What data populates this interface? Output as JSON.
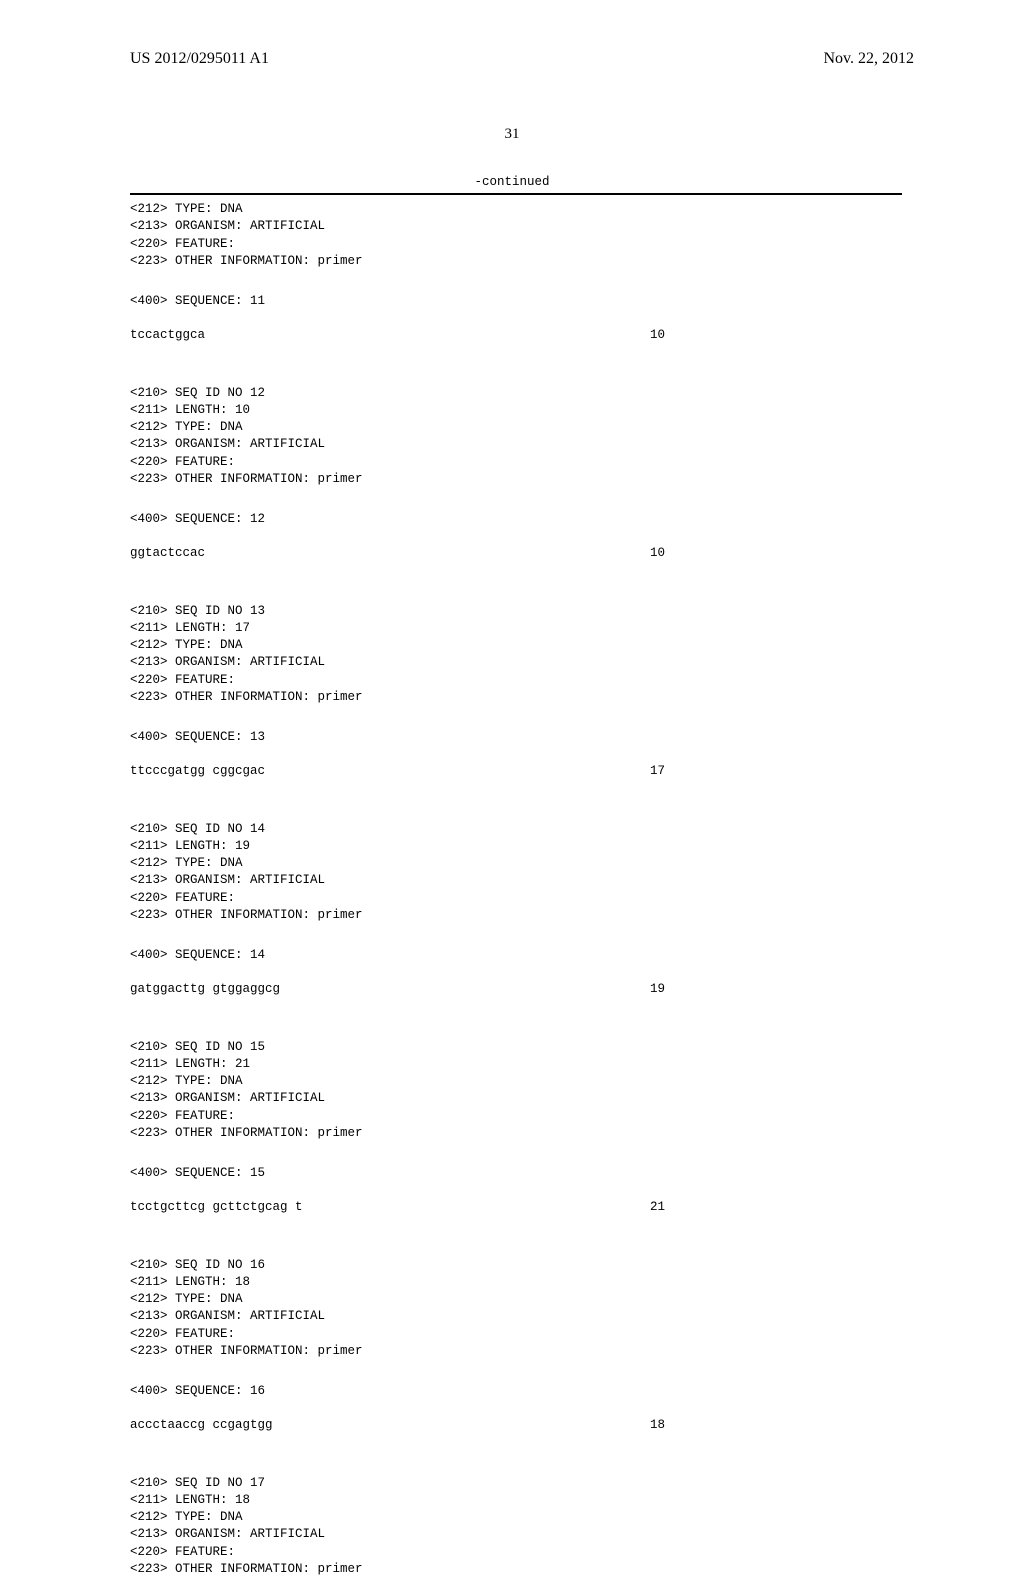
{
  "header": {
    "pub_number": "US 2012/0295011 A1",
    "pub_date": "Nov. 22, 2012"
  },
  "page_number": "31",
  "continued_label": "-continued",
  "entries": [
    {
      "head_lines": [
        "<212> TYPE: DNA",
        "<213> ORGANISM: ARTIFICIAL",
        "<220> FEATURE:",
        "<223> OTHER INFORMATION: primer"
      ],
      "seq_label": "<400> SEQUENCE: 11",
      "sequence": "tccactggca",
      "length": "10"
    },
    {
      "head_lines": [
        "<210> SEQ ID NO 12",
        "<211> LENGTH: 10",
        "<212> TYPE: DNA",
        "<213> ORGANISM: ARTIFICIAL",
        "<220> FEATURE:",
        "<223> OTHER INFORMATION: primer"
      ],
      "seq_label": "<400> SEQUENCE: 12",
      "sequence": "ggtactccac",
      "length": "10"
    },
    {
      "head_lines": [
        "<210> SEQ ID NO 13",
        "<211> LENGTH: 17",
        "<212> TYPE: DNA",
        "<213> ORGANISM: ARTIFICIAL",
        "<220> FEATURE:",
        "<223> OTHER INFORMATION: primer"
      ],
      "seq_label": "<400> SEQUENCE: 13",
      "sequence": "ttcccgatgg cggcgac",
      "length": "17"
    },
    {
      "head_lines": [
        "<210> SEQ ID NO 14",
        "<211> LENGTH: 19",
        "<212> TYPE: DNA",
        "<213> ORGANISM: ARTIFICIAL",
        "<220> FEATURE:",
        "<223> OTHER INFORMATION: primer"
      ],
      "seq_label": "<400> SEQUENCE: 14",
      "sequence": "gatggacttg gtggaggcg",
      "length": "19"
    },
    {
      "head_lines": [
        "<210> SEQ ID NO 15",
        "<211> LENGTH: 21",
        "<212> TYPE: DNA",
        "<213> ORGANISM: ARTIFICIAL",
        "<220> FEATURE:",
        "<223> OTHER INFORMATION: primer"
      ],
      "seq_label": "<400> SEQUENCE: 15",
      "sequence": "tcctgcttcg gcttctgcag t",
      "length": "21"
    },
    {
      "head_lines": [
        "<210> SEQ ID NO 16",
        "<211> LENGTH: 18",
        "<212> TYPE: DNA",
        "<213> ORGANISM: ARTIFICIAL",
        "<220> FEATURE:",
        "<223> OTHER INFORMATION: primer"
      ],
      "seq_label": "<400> SEQUENCE: 16",
      "sequence": "accctaaccg ccgagtgg",
      "length": "18"
    },
    {
      "head_lines": [
        "<210> SEQ ID NO 17",
        "<211> LENGTH: 18",
        "<212> TYPE: DNA",
        "<213> ORGANISM: ARTIFICIAL",
        "<220> FEATURE:",
        "<223> OTHER INFORMATION: primer"
      ],
      "seq_label": "",
      "sequence": "",
      "length": ""
    }
  ]
}
